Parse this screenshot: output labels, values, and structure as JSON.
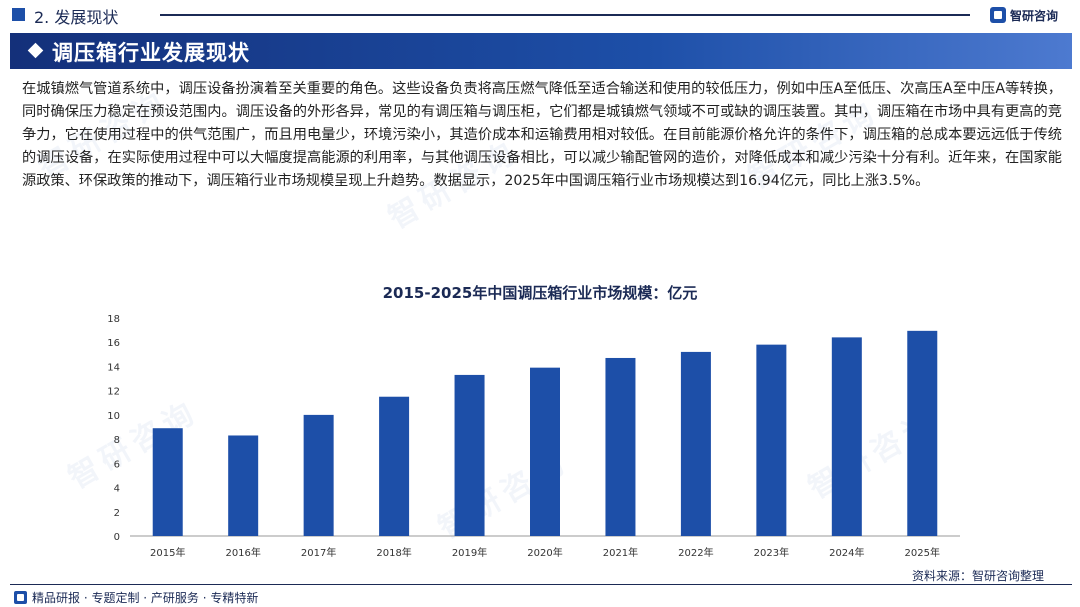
{
  "section": {
    "title": "2. 发展现状"
  },
  "logo": {
    "text": "智研咨询",
    "icon": "company-logo-icon"
  },
  "banner": {
    "title": "调压箱行业发展现状",
    "icon": "diamond-icon"
  },
  "paragraph": "在城镇燃气管道系统中，调压设备扮演着至关重要的角色。这些设备负责将高压燃气降低至适合输送和使用的较低压力，例如中压A至低压、次高压A至中压A等转换，同时确保压力稳定在预设范围内。调压设备的外形各异，常见的有调压箱与调压柜，它们都是城镇燃气领域不可或缺的调压装置。其中，调压箱在市场中具有更高的竞争力，它在使用过程中的供气范围广，而且用电量少，环境污染小，其造价成本和运输费用相对较低。在目前能源价格允许的条件下，调压箱的总成本要远远低于传统的调压设备，在实际使用过程中可以大幅度提高能源的利用率，与其他调压设备相比，可以减少输配管网的造价，对降低成本和减少污染十分有利。近年来，在国家能源政策、环保政策的推动下，调压箱行业市场规模呈现上升趋势。数据显示，2025年中国调压箱行业市场规模达到16.94亿元，同比上涨3.5%。",
  "watermark": "智研咨询",
  "colors": {
    "bar": "#1d4fa8",
    "navy": "#1b2a55",
    "axis": "#999999"
  },
  "chart_data": {
    "type": "bar",
    "title": "2015-2025年中国调压箱行业市场规模：亿元",
    "categories": [
      "2015年",
      "2016年",
      "2017年",
      "2018年",
      "2019年",
      "2020年",
      "2021年",
      "2022年",
      "2023年",
      "2024年",
      "2025年"
    ],
    "values": [
      8.9,
      8.3,
      10.0,
      11.5,
      13.3,
      13.9,
      14.7,
      15.2,
      15.8,
      16.4,
      16.94
    ],
    "yticks": [
      0,
      2,
      4,
      6,
      8,
      10,
      12,
      14,
      16,
      18
    ],
    "ylim": [
      0,
      18
    ],
    "xlabel": "",
    "ylabel": ""
  },
  "source": "资料来源：智研咨询整理",
  "footer": {
    "text": "精品研报 · 专题定制 · 产研服务 · 专精特新",
    "icon": "company-logo-icon"
  }
}
